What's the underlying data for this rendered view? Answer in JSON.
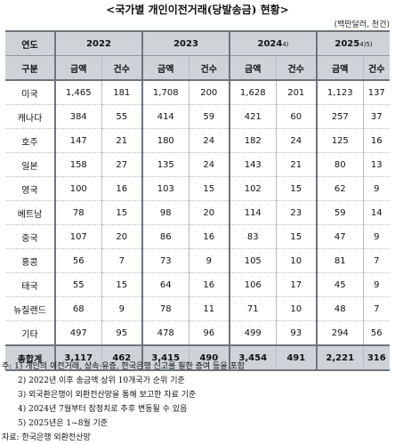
{
  "title": "<국가별 개인이전거래(당발송금) 현황>",
  "unit": "(백만달러, 천건)",
  "table": {
    "header_year_label": "연도",
    "header_sub_label": "구분",
    "years": [
      {
        "label": "2022",
        "note": ""
      },
      {
        "label": "2023",
        "note": ""
      },
      {
        "label": "2024",
        "note": "4)"
      },
      {
        "label": "2025",
        "note": "4)5)"
      }
    ],
    "amount_label": "금액",
    "count_label": "건수",
    "rows": [
      {
        "country": "미국",
        "values": [
          "1,465",
          "181",
          "1,708",
          "200",
          "1,628",
          "201",
          "1,123",
          "137"
        ]
      },
      {
        "country": "캐나다",
        "values": [
          "384",
          "55",
          "414",
          "59",
          "421",
          "60",
          "257",
          "37"
        ]
      },
      {
        "country": "호주",
        "values": [
          "147",
          "21",
          "180",
          "24",
          "182",
          "24",
          "125",
          "16"
        ]
      },
      {
        "country": "일본",
        "values": [
          "158",
          "27",
          "135",
          "24",
          "143",
          "21",
          "80",
          "13"
        ]
      },
      {
        "country": "영국",
        "values": [
          "100",
          "16",
          "103",
          "15",
          "102",
          "15",
          "62",
          "9"
        ]
      },
      {
        "country": "베트남",
        "values": [
          "78",
          "15",
          "98",
          "20",
          "114",
          "23",
          "59",
          "14"
        ]
      },
      {
        "country": "중국",
        "values": [
          "107",
          "20",
          "86",
          "16",
          "83",
          "15",
          "47",
          "9"
        ]
      },
      {
        "country": "홍콩",
        "values": [
          "56",
          "7",
          "73",
          "9",
          "105",
          "10",
          "81",
          "7"
        ]
      },
      {
        "country": "태국",
        "values": [
          "55",
          "15",
          "64",
          "16",
          "106",
          "17",
          "45",
          "9"
        ]
      },
      {
        "country": "뉴질랜드",
        "values": [
          "68",
          "9",
          "78",
          "11",
          "71",
          "10",
          "48",
          "7"
        ]
      },
      {
        "country": "기타",
        "values": [
          "497",
          "95",
          "478",
          "96",
          "499",
          "93",
          "294",
          "56"
        ]
      }
    ],
    "total": {
      "country": "총합계",
      "values": [
        "3,117",
        "462",
        "3,415",
        "490",
        "3,454",
        "491",
        "2,221",
        "316"
      ]
    }
  },
  "notes": [
    "주: 1) 개인의 이전거래, 상속·유증, 한국은행 신고를 필한 증여 등을 포함",
    "2) 2022년 이후 송금액 상위 10개국가 순위 기준",
    "3) 외국환은행이 외환전산망을 통해 보고한 자료 기준",
    "4) 2024년 7월부터 잠정치로 추후 변동될 수 있음",
    "5) 2025년은 1~8월 기준"
  ],
  "source": "자료: 한국은행 외환전산망"
}
